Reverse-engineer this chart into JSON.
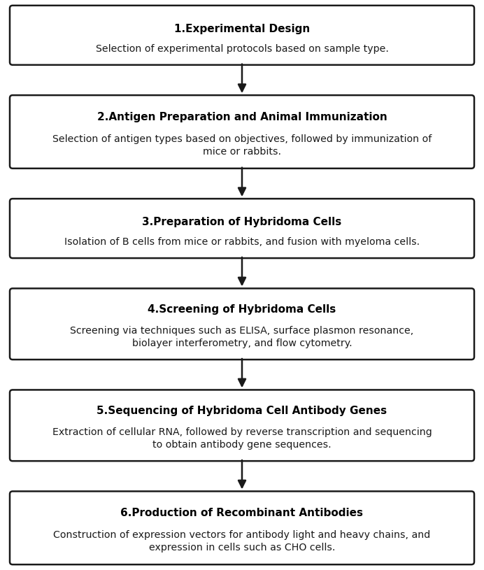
{
  "background_color": "#ffffff",
  "box_bg_color": "#ffffff",
  "box_edge_color": "#1a1a1a",
  "box_edge_width": 1.8,
  "arrow_color": "#1a1a1a",
  "title_color": "#000000",
  "body_color": "#1a1a1a",
  "steps": [
    {
      "title": "1.Experimental Design",
      "body": "Selection of experimental protocols based on sample type.",
      "body_lines": 1
    },
    {
      "title": "2.Antigen Preparation and Animal Immunization",
      "body": "Selection of antigen types based on objectives, followed by immunization of\nmice or rabbits.",
      "body_lines": 2
    },
    {
      "title": "3.Preparation of Hybridoma Cells",
      "body": "Isolation of B cells from mice or rabbits, and fusion with myeloma cells.",
      "body_lines": 1
    },
    {
      "title": "4.Screening of Hybridoma Cells",
      "body": "Screening via techniques such as ELISA, surface plasmon resonance,\nbiolayer interferometry, and flow cytometry.",
      "body_lines": 2
    },
    {
      "title": "5.Sequencing of Hybridoma Cell Antibody Genes",
      "body": "Extraction of cellular RNA, followed by reverse transcription and sequencing\nto obtain antibody gene sequences.",
      "body_lines": 2
    },
    {
      "title": "6.Production of Recombinant Antibodies",
      "body": "Construction of expression vectors for antibody light and heavy chains, and\nexpression in cells such as CHO cells.",
      "body_lines": 2
    }
  ],
  "title_fontsize": 11.0,
  "body_fontsize": 10.2,
  "fig_width": 6.92,
  "fig_height": 8.15,
  "dpi": 100
}
